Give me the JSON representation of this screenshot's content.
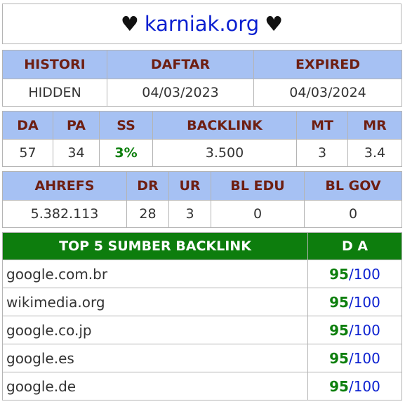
{
  "title": {
    "heart_left": "♥",
    "domain": "karniak.org",
    "heart_right": "♥"
  },
  "history": {
    "headers": [
      "HISTORI",
      "DAFTAR",
      "EXPIRED"
    ],
    "values": [
      "HIDDEN",
      "04/03/2023",
      "04/03/2024"
    ]
  },
  "metrics": {
    "headers": [
      "DA",
      "PA",
      "SS",
      "BACKLINK",
      "MT",
      "MR"
    ],
    "values": [
      "57",
      "34",
      "3%",
      "3.500",
      "3",
      "3.4"
    ]
  },
  "ahrefs": {
    "headers": [
      "AHREFS",
      "DR",
      "UR",
      "BL EDU",
      "BL GOV"
    ],
    "values": [
      "5.382.113",
      "28",
      "3",
      "0",
      "0"
    ]
  },
  "top_backlinks": {
    "header_source": "TOP 5 SUMBER BACKLINK",
    "header_da": "D A",
    "rows": [
      {
        "source": "google.com.br",
        "da": "95",
        "sep": "/",
        "max": "100"
      },
      {
        "source": "wikimedia.org",
        "da": "95",
        "sep": "/",
        "max": "100"
      },
      {
        "source": "google.co.jp",
        "da": "95",
        "sep": "/",
        "max": "100"
      },
      {
        "source": "google.es",
        "da": "95",
        "sep": "/",
        "max": "100"
      },
      {
        "source": "google.de",
        "da": "95",
        "sep": "/",
        "max": "100"
      }
    ]
  },
  "colors": {
    "header_blue": "#a6c1f3",
    "header_text": "#6e1f12",
    "green_header": "#0d7d0d",
    "link_blue": "#0a1fd0",
    "green_text": "#0d7f0d"
  }
}
